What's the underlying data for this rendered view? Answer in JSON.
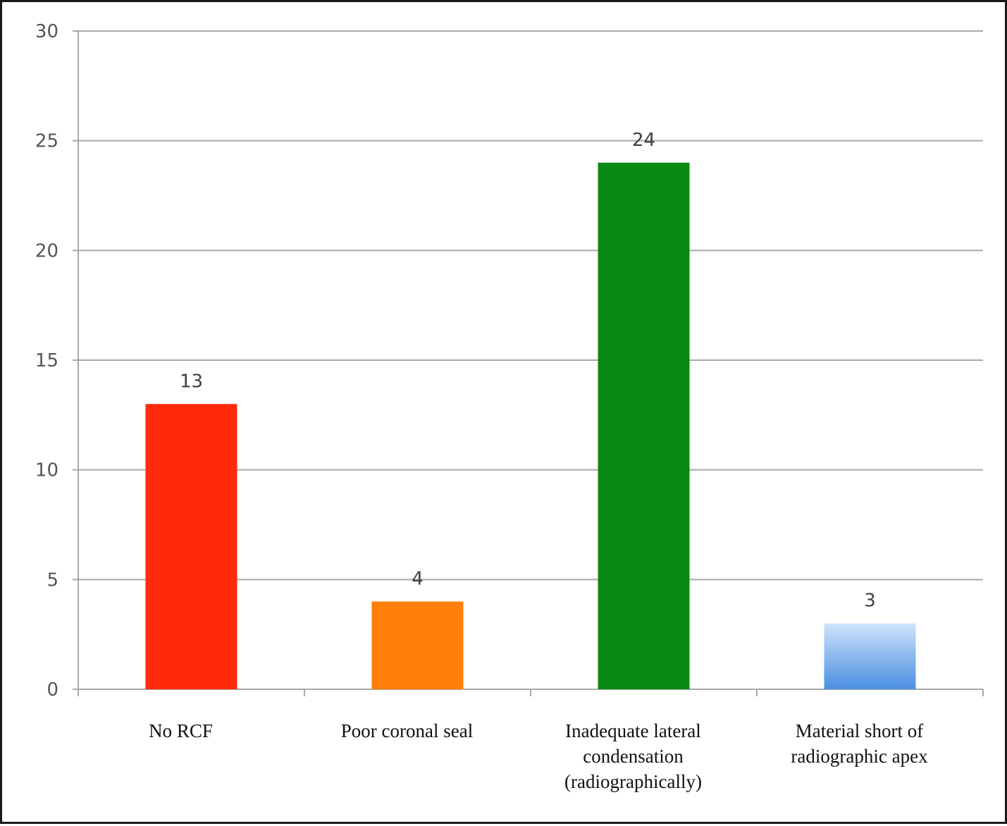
{
  "chart_data": {
    "type": "bar",
    "categories": [
      "No RCF",
      "Poor coronal seal",
      "Inadequate lateral condensation (radiographically)",
      "Material short of radiographic apex"
    ],
    "category_lines": [
      [
        "No RCF"
      ],
      [
        "Poor coronal seal"
      ],
      [
        "Inadequate lateral",
        "condensation",
        "(radiographically)"
      ],
      [
        "Material short of",
        "radiographic apex"
      ]
    ],
    "values": [
      13,
      4,
      24,
      3
    ],
    "data_labels": [
      "13",
      "4",
      "24",
      "3"
    ],
    "bar_colors": [
      "#ff2a0a",
      "#ff7f0a",
      "#0a8a12",
      "#6aa8e8"
    ],
    "ylim": [
      0,
      30
    ],
    "yticks": [
      0,
      5,
      10,
      15,
      20,
      25,
      30
    ],
    "ytick_labels": [
      "0",
      "5",
      "10",
      "15",
      "20",
      "25",
      "30"
    ],
    "grid": true,
    "title": "",
    "xlabel": "",
    "ylabel": "",
    "legend": "none"
  }
}
